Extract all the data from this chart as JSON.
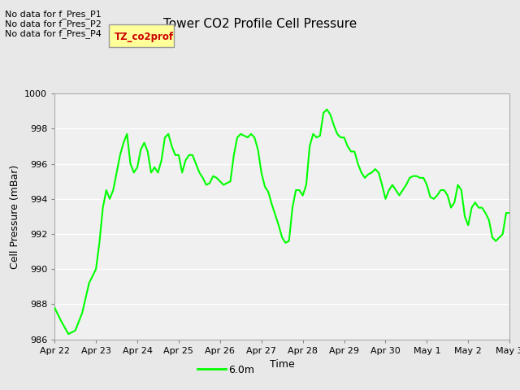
{
  "title": "Tower CO2 Profile Cell Pressure",
  "xlabel": "Time",
  "ylabel": "Cell Pressure (mBar)",
  "ylim": [
    986,
    1000
  ],
  "yticks": [
    986,
    988,
    990,
    992,
    994,
    996,
    998,
    1000
  ],
  "line_color": "#00FF00",
  "line_label": "6.0m",
  "legend_label": "TZ_co2prof",
  "legend_color": "#FFFF99",
  "legend_text_color": "#CC0000",
  "no_data_labels": [
    "No data for f_Pres_P1",
    "No data for f_Pres_P2",
    "No data for f_Pres_P4"
  ],
  "bg_color": "#E8E8E8",
  "plot_bg_color": "#F0F0F0",
  "x_start": 0,
  "x_end": 264,
  "x_tick_labels": [
    "Apr 22",
    "Apr 23",
    "Apr 24",
    "Apr 25",
    "Apr 26",
    "Apr 27",
    "Apr 28",
    "Apr 29",
    "Apr 30",
    "May 1",
    "May 2",
    "May 3"
  ],
  "x_tick_positions": [
    0,
    24,
    48,
    72,
    96,
    120,
    144,
    168,
    192,
    216,
    240,
    264
  ],
  "line_width": 1.5,
  "data_x": [
    0,
    4,
    8,
    12,
    16,
    20,
    24,
    26,
    28,
    30,
    32,
    34,
    36,
    38,
    40,
    42,
    44,
    46,
    48,
    50,
    52,
    54,
    56,
    58,
    60,
    62,
    64,
    66,
    68,
    70,
    72,
    74,
    76,
    78,
    80,
    82,
    84,
    86,
    88,
    90,
    92,
    94,
    96,
    98,
    100,
    102,
    104,
    106,
    108,
    110,
    112,
    114,
    116,
    118,
    120,
    122,
    124,
    126,
    128,
    130,
    132,
    134,
    136,
    138,
    140,
    142,
    144,
    146,
    148,
    150,
    152,
    154,
    156,
    158,
    160,
    162,
    164,
    166,
    168,
    170,
    172,
    174,
    176,
    178,
    180,
    182,
    184,
    186,
    188,
    190,
    192,
    194,
    196,
    198,
    200,
    202,
    204,
    206,
    208,
    210,
    212,
    214,
    216,
    218,
    220,
    222,
    224,
    226,
    228,
    230,
    232,
    234,
    236,
    238,
    240,
    242,
    244,
    246,
    248,
    250,
    252,
    254,
    256,
    258,
    260,
    262,
    264
  ],
  "data_y": [
    987.8,
    987.0,
    986.3,
    986.5,
    987.5,
    989.2,
    990.0,
    991.5,
    993.5,
    994.5,
    994.0,
    994.5,
    995.5,
    996.5,
    997.2,
    997.7,
    996.0,
    995.5,
    995.8,
    996.8,
    997.2,
    996.7,
    995.5,
    995.8,
    995.5,
    996.2,
    997.5,
    997.7,
    997.0,
    996.5,
    996.5,
    995.5,
    996.2,
    996.5,
    996.5,
    996.0,
    995.5,
    995.2,
    994.8,
    994.9,
    995.3,
    995.2,
    995.0,
    994.8,
    994.9,
    995.0,
    996.5,
    997.5,
    997.7,
    997.6,
    997.5,
    997.7,
    997.5,
    996.8,
    995.5,
    994.7,
    994.4,
    993.7,
    993.1,
    992.5,
    991.8,
    991.5,
    991.6,
    993.5,
    994.5,
    994.5,
    994.2,
    994.8,
    997.0,
    997.7,
    997.5,
    997.6,
    998.9,
    999.1,
    998.8,
    998.2,
    997.7,
    997.5,
    997.5,
    997.0,
    996.7,
    996.7,
    996.0,
    995.5,
    995.2,
    995.4,
    995.5,
    995.7,
    995.5,
    994.8,
    994.0,
    994.5,
    994.8,
    994.5,
    994.2,
    994.5,
    994.8,
    995.2,
    995.3,
    995.3,
    995.2,
    995.2,
    994.8,
    994.1,
    994.0,
    994.2,
    994.5,
    994.5,
    994.2,
    993.5,
    993.8,
    994.8,
    994.5,
    993.0,
    992.5,
    993.5,
    993.8,
    993.5,
    993.5,
    993.2,
    992.8,
    991.8,
    991.6,
    991.8,
    992.0,
    993.2,
    993.2
  ]
}
